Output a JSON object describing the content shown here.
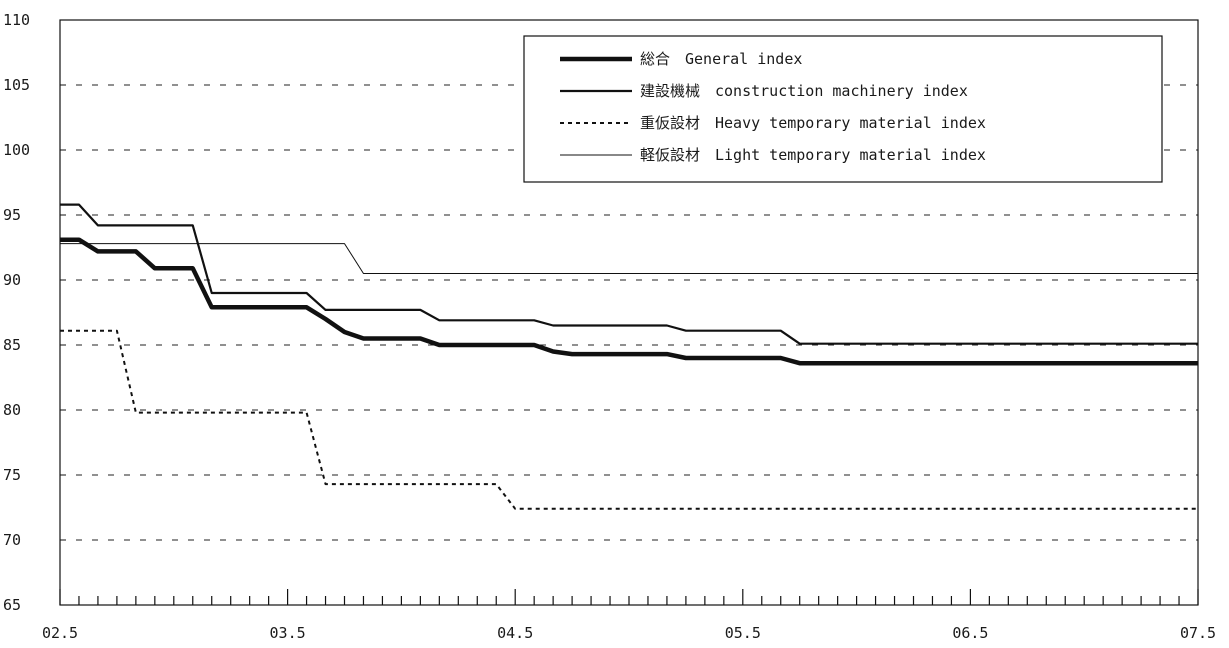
{
  "chart_data": {
    "type": "line",
    "title": "",
    "xlabel": "",
    "ylabel": "",
    "ylim": [
      65,
      110
    ],
    "yticks": [
      65,
      70,
      75,
      80,
      85,
      90,
      95,
      100,
      105,
      110
    ],
    "xticks": [
      "02.5",
      "03.5",
      "04.5",
      "05.5",
      "06.5",
      "07.5"
    ],
    "xlim": [
      0,
      60
    ],
    "grid": "horizontal-dashed",
    "legend_position": "top-right",
    "series": [
      {
        "name": "総合　General index",
        "color": "#111111",
        "style": "thick",
        "values": [
          93.1,
          93.1,
          92.2,
          92.2,
          92.2,
          90.9,
          90.9,
          90.9,
          87.9,
          87.9,
          87.9,
          87.9,
          87.9,
          87.9,
          87.0,
          86.0,
          85.5,
          85.5,
          85.5,
          85.5,
          85.0,
          85.0,
          85.0,
          85.0,
          85.0,
          85.0,
          84.5,
          84.3,
          84.3,
          84.3,
          84.3,
          84.3,
          84.3,
          84.0,
          84.0,
          84.0,
          84.0,
          84.0,
          84.0,
          83.6,
          83.6,
          83.6,
          83.6,
          83.6,
          83.6,
          83.6,
          83.6,
          83.6,
          83.6,
          83.6,
          83.6,
          83.6,
          83.6,
          83.6,
          83.6,
          83.6,
          83.6,
          83.6,
          83.6,
          83.6,
          83.6
        ]
      },
      {
        "name": "建設機械　construction machinery index",
        "color": "#111111",
        "style": "medium",
        "values": [
          95.8,
          95.8,
          94.2,
          94.2,
          94.2,
          94.2,
          94.2,
          94.2,
          89.0,
          89.0,
          89.0,
          89.0,
          89.0,
          89.0,
          87.7,
          87.7,
          87.7,
          87.7,
          87.7,
          87.7,
          86.9,
          86.9,
          86.9,
          86.9,
          86.9,
          86.9,
          86.5,
          86.5,
          86.5,
          86.5,
          86.5,
          86.5,
          86.5,
          86.1,
          86.1,
          86.1,
          86.1,
          86.1,
          86.1,
          85.1,
          85.1,
          85.1,
          85.1,
          85.1,
          85.1,
          85.1,
          85.1,
          85.1,
          85.1,
          85.1,
          85.1,
          85.1,
          85.1,
          85.1,
          85.1,
          85.1,
          85.1,
          85.1,
          85.1,
          85.1,
          85.1
        ]
      },
      {
        "name": "重仮設材　Heavy temporary material index",
        "color": "#111111",
        "style": "dotted",
        "values": [
          86.1,
          86.1,
          86.1,
          86.1,
          79.8,
          79.8,
          79.8,
          79.8,
          79.8,
          79.8,
          79.8,
          79.8,
          79.8,
          79.8,
          74.3,
          74.3,
          74.3,
          74.3,
          74.3,
          74.3,
          74.3,
          74.3,
          74.3,
          74.3,
          72.4,
          72.4,
          72.4,
          72.4,
          72.4,
          72.4,
          72.4,
          72.4,
          72.4,
          72.4,
          72.4,
          72.4,
          72.4,
          72.4,
          72.4,
          72.4,
          72.4,
          72.4,
          72.4,
          72.4,
          72.4,
          72.4,
          72.4,
          72.4,
          72.4,
          72.4,
          72.4,
          72.4,
          72.4,
          72.4,
          72.4,
          72.4,
          72.4,
          72.4,
          72.4,
          72.4,
          72.4
        ]
      },
      {
        "name": "軽仮設材　Light temporary material index",
        "color": "#111111",
        "style": "thin",
        "values": [
          92.8,
          92.8,
          92.8,
          92.8,
          92.8,
          92.8,
          92.8,
          92.8,
          92.8,
          92.8,
          92.8,
          92.8,
          92.8,
          92.8,
          92.8,
          92.8,
          90.5,
          90.5,
          90.5,
          90.5,
          90.5,
          90.5,
          90.5,
          90.5,
          90.5,
          90.5,
          90.5,
          90.5,
          90.5,
          90.5,
          90.5,
          90.5,
          90.5,
          90.5,
          90.5,
          90.5,
          90.5,
          90.5,
          90.5,
          90.5,
          90.5,
          90.5,
          90.5,
          90.5,
          90.5,
          90.5,
          90.5,
          90.5,
          90.5,
          90.5,
          90.5,
          90.5,
          90.5,
          90.5,
          90.5,
          90.5,
          90.5,
          90.5,
          90.5,
          90.5,
          90.5
        ]
      }
    ]
  }
}
